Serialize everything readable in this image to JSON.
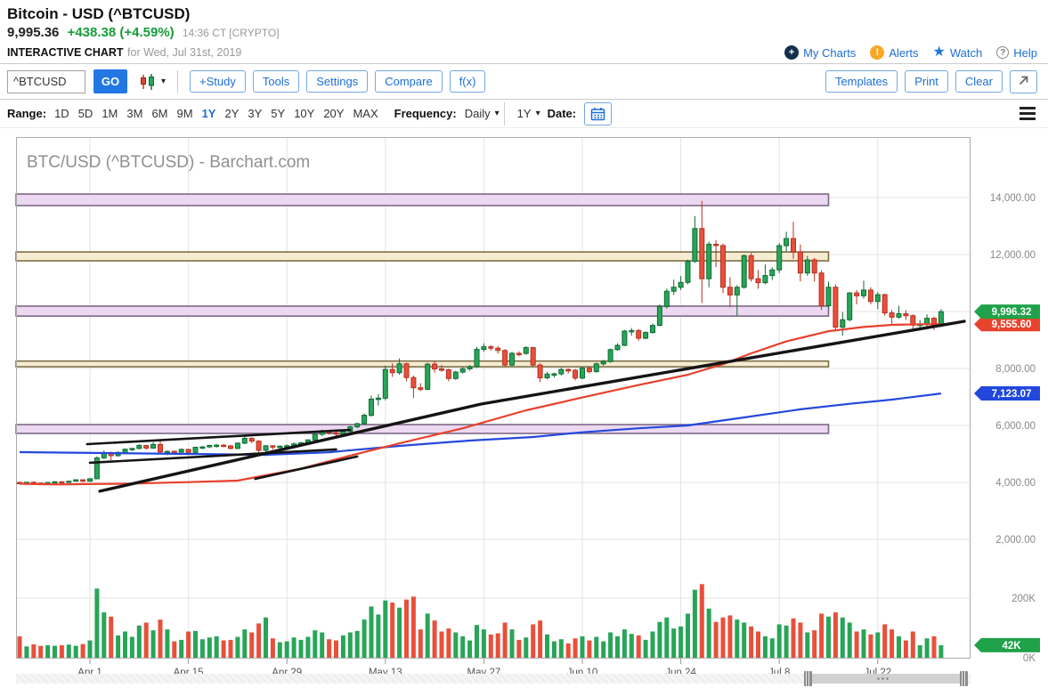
{
  "header": {
    "title": "Bitcoin - USD (^BTCUSD)",
    "price": "9,995.36",
    "change": "+438.38 (+4.59%)",
    "time": "14:36 CT [CRYPTO]",
    "page_label": "INTERACTIVE CHART",
    "page_sublabel": "for Wed, Jul 31st, 2019",
    "links": {
      "my_charts": "My Charts",
      "alerts": "Alerts",
      "watch": "Watch",
      "help": "Help"
    }
  },
  "icons": {
    "chevron_down": "▾",
    "star": "★",
    "plus": "+",
    "exclamation": "!",
    "question": "?"
  },
  "toolbar": {
    "symbol_value": "^BTCUSD",
    "go_label": "GO",
    "study_label": "+Study",
    "tools_label": "Tools",
    "settings_label": "Settings",
    "compare_label": "Compare",
    "fx_label": "f(x)",
    "templates_label": "Templates",
    "print_label": "Print",
    "clear_label": "Clear"
  },
  "rangebar": {
    "range_label": "Range:",
    "ranges": [
      "1D",
      "5D",
      "1M",
      "3M",
      "6M",
      "9M",
      "1Y",
      "2Y",
      "3Y",
      "5Y",
      "10Y",
      "20Y",
      "MAX"
    ],
    "selected_range": "1Y",
    "frequency_label": "Frequency:",
    "frequency_value": "Daily",
    "period_value": "1Y",
    "date_label": "Date:"
  },
  "chart_data": {
    "type": "candlestick",
    "symbol": "^BTCUSD",
    "watermark": "BTC/USD (^BTCUSD) - Barchart.com",
    "x_axis": {
      "labels": [
        {
          "label": "Apr 1",
          "day": 10
        },
        {
          "label": "Apr 15",
          "day": 24
        },
        {
          "label": "Apr 29",
          "day": 38
        },
        {
          "label": "May 13",
          "day": 52
        },
        {
          "label": "May 27",
          "day": 66
        },
        {
          "label": "Jun 10",
          "day": 80
        },
        {
          "label": "Jun 24",
          "day": 94
        },
        {
          "label": "Jul 8",
          "day": 108
        },
        {
          "label": "Jul 22",
          "day": 122
        }
      ]
    },
    "y_axis": {
      "ticks": [
        {
          "label": "14,000.00",
          "value": 14000
        },
        {
          "label": "12,000.00",
          "value": 12000
        },
        {
          "label": "10,000.00",
          "value": 10000
        },
        {
          "label": "8,000.00",
          "value": 8000
        },
        {
          "label": "6,000.00",
          "value": 6000
        },
        {
          "label": "4,000.00",
          "value": 4000
        },
        {
          "label": "2,000.00",
          "value": 2000
        }
      ]
    },
    "volume_axis": {
      "ticks": [
        {
          "label": "200K",
          "value": 200
        },
        {
          "label": "0K",
          "value": 0
        }
      ]
    },
    "price_tags": [
      {
        "label": "9,555.60",
        "value": 9555.6,
        "color": "#e8432c"
      },
      {
        "label": "9,996.32",
        "value": 9996.32,
        "color": "#1fa24a"
      },
      {
        "label": "7,123.07",
        "value": 7123.07,
        "color": "#2147dd"
      }
    ],
    "volume_tag": {
      "label": "42K",
      "value": 42,
      "color": "#1fa24a"
    },
    "bands": [
      {
        "color": "purple",
        "price_range": [
          13720,
          14125
        ],
        "day_range": [
          -0.5,
          115
        ]
      },
      {
        "color": "tan",
        "price_range": [
          11780,
          12090
        ],
        "day_range": [
          -0.5,
          115
        ]
      },
      {
        "color": "purple",
        "price_range": [
          9840,
          10190
        ],
        "day_range": [
          -0.5,
          115
        ]
      },
      {
        "color": "tan",
        "price_range": [
          8060,
          8260
        ],
        "day_range": [
          -0.5,
          115
        ]
      },
      {
        "color": "purple",
        "price_range": [
          5720,
          6030
        ],
        "day_range": [
          -0.5,
          115
        ]
      }
    ],
    "trendlines": [
      {
        "points": [
          [
            9.6,
            5344
          ],
          [
            47,
            5844
          ]
        ],
        "width": 2.6
      },
      {
        "points": [
          [
            10,
            4690
          ],
          [
            45,
            5160
          ]
        ],
        "width": 2.6
      },
      {
        "points": [
          [
            33.5,
            4125
          ],
          [
            48,
            4910
          ]
        ],
        "width": 2.6
      },
      {
        "points": [
          [
            11.4,
            3690
          ],
          [
            65.6,
            6750
          ],
          [
            134.3,
            9656
          ]
        ],
        "width": 3.4
      }
    ],
    "ma_fast": {
      "color": "#e8402d",
      "points": [
        [
          0,
          3952
        ],
        [
          3,
          3938
        ],
        [
          6,
          3928
        ],
        [
          9,
          3940
        ],
        [
          15,
          3952
        ],
        [
          24,
          4010
        ],
        [
          31,
          4062
        ],
        [
          40,
          4480
        ],
        [
          47,
          4940
        ],
        [
          55,
          5430
        ],
        [
          63,
          5900
        ],
        [
          72,
          6530
        ],
        [
          80,
          6980
        ],
        [
          88,
          7420
        ],
        [
          95,
          7780
        ],
        [
          100,
          8150
        ],
        [
          104,
          8530
        ],
        [
          109,
          8950
        ],
        [
          115,
          9310
        ],
        [
          120,
          9455
        ],
        [
          124,
          9530
        ],
        [
          128,
          9552
        ],
        [
          131,
          9556
        ]
      ]
    },
    "ma_slow": {
      "color": "#2448dd",
      "points": [
        [
          0,
          5062
        ],
        [
          12,
          5030
        ],
        [
          24,
          5000
        ],
        [
          35,
          4970
        ],
        [
          44,
          5060
        ],
        [
          54,
          5280
        ],
        [
          64,
          5470
        ],
        [
          73,
          5595
        ],
        [
          80,
          5760
        ],
        [
          88,
          5900
        ],
        [
          95,
          6000
        ],
        [
          103,
          6280
        ],
        [
          111,
          6565
        ],
        [
          118,
          6760
        ],
        [
          124,
          6905
        ],
        [
          131,
          7123
        ]
      ]
    },
    "candles": [
      [
        4000,
        4030,
        3950,
        3980,
        72
      ],
      [
        3980,
        4020,
        3955,
        4005,
        38
      ],
      [
        4005,
        4030,
        3950,
        3975,
        45
      ],
      [
        3975,
        4000,
        3945,
        3968,
        40
      ],
      [
        3968,
        4010,
        3952,
        3998,
        42
      ],
      [
        3998,
        4045,
        3980,
        4022,
        40
      ],
      [
        4022,
        4040,
        3992,
        4012,
        42
      ],
      [
        4012,
        4055,
        4000,
        4042,
        44
      ],
      [
        4042,
        4110,
        4028,
        4092,
        40
      ],
      [
        4092,
        4110,
        4018,
        4042,
        46
      ],
      [
        4042,
        4150,
        4028,
        4128,
        58
      ],
      [
        4128,
        4920,
        4110,
        4862,
        232
      ],
      [
        4862,
        5120,
        4820,
        5048,
        152
      ],
      [
        5048,
        5080,
        4780,
        4938,
        138
      ],
      [
        4938,
        5090,
        4900,
        5052,
        75
      ],
      [
        5052,
        5190,
        5030,
        5165,
        88
      ],
      [
        5165,
        5222,
        5098,
        5192,
        70
      ],
      [
        5192,
        5350,
        5160,
        5295,
        108
      ],
      [
        5295,
        5322,
        5148,
        5205,
        118
      ],
      [
        5205,
        5410,
        5178,
        5332,
        92
      ],
      [
        5332,
        5452,
        5012,
        5072,
        128
      ],
      [
        5072,
        5122,
        4952,
        5088,
        95
      ],
      [
        5095,
        5112,
        5022,
        5062,
        55
      ],
      [
        5062,
        5192,
        5040,
        5158,
        60
      ],
      [
        5158,
        5182,
        4992,
        5052,
        88
      ],
      [
        5052,
        5252,
        5030,
        5232,
        90
      ],
      [
        5232,
        5272,
        5170,
        5248,
        62
      ],
      [
        5248,
        5322,
        5200,
        5298,
        68
      ],
      [
        5298,
        5352,
        5222,
        5308,
        72
      ],
      [
        5308,
        5342,
        5232,
        5282,
        58
      ],
      [
        5282,
        5312,
        5162,
        5192,
        60
      ],
      [
        5192,
        5402,
        5172,
        5378,
        70
      ],
      [
        5378,
        5602,
        5342,
        5545,
        95
      ],
      [
        5545,
        5582,
        5382,
        5448,
        85
      ],
      [
        5448,
        5482,
        5052,
        5128,
        115
      ],
      [
        5128,
        5312,
        4922,
        5285,
        135
      ],
      [
        5285,
        5312,
        5152,
        5238,
        65
      ],
      [
        5238,
        5302,
        5182,
        5272,
        52
      ],
      [
        5272,
        5332,
        5212,
        5288,
        55
      ],
      [
        5288,
        5402,
        5242,
        5352,
        68
      ],
      [
        5352,
        5422,
        5302,
        5388,
        60
      ],
      [
        5388,
        5512,
        5352,
        5492,
        70
      ],
      [
        5492,
        5722,
        5462,
        5688,
        92
      ],
      [
        5688,
        5852,
        5622,
        5795,
        85
      ],
      [
        5795,
        5842,
        5682,
        5742,
        62
      ],
      [
        5742,
        5792,
        5642,
        5698,
        58
      ],
      [
        5698,
        5832,
        5662,
        5788,
        75
      ],
      [
        5788,
        5992,
        5752,
        5952,
        85
      ],
      [
        5952,
        6102,
        5902,
        6062,
        90
      ],
      [
        6062,
        6422,
        6022,
        6358,
        128
      ],
      [
        6358,
        7052,
        6302,
        6925,
        172
      ],
      [
        6925,
        7102,
        6702,
        6958,
        145
      ],
      [
        6958,
        8102,
        6880,
        7962,
        192
      ],
      [
        7962,
        8182,
        7702,
        7852,
        185
      ],
      [
        7852,
        8352,
        7782,
        8165,
        168
      ],
      [
        8165,
        8202,
        7552,
        7682,
        195
      ],
      [
        7682,
        7752,
        6962,
        7322,
        205
      ],
      [
        7322,
        7482,
        7202,
        7268,
        95
      ],
      [
        7268,
        8202,
        7242,
        8152,
        148
      ],
      [
        8152,
        8252,
        7852,
        7985,
        125
      ],
      [
        7985,
        8122,
        7882,
        7952,
        88
      ],
      [
        7952,
        7992,
        7552,
        7648,
        98
      ],
      [
        7648,
        7922,
        7602,
        7872,
        85
      ],
      [
        7872,
        8052,
        7822,
        7988,
        72
      ],
      [
        7988,
        8122,
        7922,
        8062,
        58
      ],
      [
        8062,
        8752,
        8022,
        8672,
        110
      ],
      [
        8672,
        8882,
        8582,
        8762,
        95
      ],
      [
        8762,
        8822,
        8622,
        8712,
        78
      ],
      [
        8712,
        8782,
        8522,
        8632,
        82
      ],
      [
        8632,
        8682,
        8052,
        8122,
        118
      ],
      [
        8122,
        8582,
        8082,
        8532,
        95
      ],
      [
        8532,
        8602,
        8422,
        8528,
        60
      ],
      [
        8528,
        8782,
        8482,
        8732,
        68
      ],
      [
        8732,
        8762,
        8052,
        8122,
        112
      ],
      [
        8122,
        8182,
        7522,
        7672,
        125
      ],
      [
        7672,
        7882,
        7622,
        7802,
        78
      ],
      [
        7802,
        7852,
        7682,
        7812,
        55
      ],
      [
        7812,
        8022,
        7752,
        7962,
        62
      ],
      [
        7962,
        8002,
        7822,
        7938,
        48
      ],
      [
        7938,
        7982,
        7582,
        7662,
        65
      ],
      [
        7662,
        8052,
        7622,
        8012,
        72
      ],
      [
        8012,
        8062,
        7822,
        7892,
        58
      ],
      [
        7892,
        8202,
        7852,
        8162,
        70
      ],
      [
        8162,
        8302,
        8102,
        8242,
        55
      ],
      [
        8242,
        8702,
        8202,
        8662,
        85
      ],
      [
        8662,
        8882,
        8622,
        8812,
        72
      ],
      [
        8812,
        9352,
        8782,
        9312,
        95
      ],
      [
        9312,
        9422,
        9152,
        9332,
        80
      ],
      [
        9332,
        9382,
        8972,
        9062,
        75
      ],
      [
        9062,
        9302,
        9022,
        9262,
        60
      ],
      [
        9262,
        9582,
        9222,
        9512,
        88
      ],
      [
        9512,
        10252,
        9482,
        10172,
        120
      ],
      [
        10172,
        10802,
        10102,
        10712,
        135
      ],
      [
        10712,
        11122,
        10582,
        10852,
        98
      ],
      [
        10852,
        11252,
        10752,
        11022,
        105
      ],
      [
        11022,
        11822,
        10952,
        11762,
        148
      ],
      [
        11762,
        13352,
        11702,
        12912,
        228
      ],
      [
        12912,
        13882,
        10302,
        11152,
        247
      ],
      [
        11152,
        12452,
        10852,
        12362,
        165
      ],
      [
        12362,
        12502,
        11552,
        12315,
        120
      ],
      [
        12315,
        12382,
        10652,
        10852,
        135
      ],
      [
        10852,
        11202,
        10152,
        10582,
        142
      ],
      [
        10582,
        10922,
        9852,
        10852,
        128
      ],
      [
        10852,
        12002,
        10802,
        11962,
        118
      ],
      [
        11962,
        12052,
        11052,
        11152,
        105
      ],
      [
        11152,
        11452,
        10802,
        11012,
        88
      ],
      [
        11012,
        11652,
        10952,
        11262,
        72
      ],
      [
        11262,
        11552,
        11102,
        11462,
        65
      ],
      [
        11462,
        12402,
        11352,
        12312,
        112
      ],
      [
        12312,
        12802,
        12102,
        12562,
        108
      ],
      [
        12562,
        13152,
        11852,
        12092,
        132
      ],
      [
        12092,
        12352,
        11052,
        11352,
        118
      ],
      [
        11352,
        11952,
        11252,
        11812,
        85
      ],
      [
        11812,
        11882,
        11052,
        11352,
        92
      ],
      [
        11352,
        11452,
        10052,
        10202,
        148
      ],
      [
        10202,
        11052,
        10102,
        10852,
        138
      ],
      [
        10852,
        10952,
        9352,
        9452,
        152
      ],
      [
        9452,
        9982,
        9152,
        9712,
        135
      ],
      [
        9712,
        10682,
        9652,
        10652,
        118
      ],
      [
        10652,
        10752,
        10252,
        10552,
        88
      ],
      [
        10552,
        11082,
        10452,
        10752,
        95
      ],
      [
        10752,
        10852,
        10252,
        10352,
        78
      ],
      [
        10352,
        10682,
        10082,
        10592,
        85
      ],
      [
        10592,
        10622,
        9852,
        9952,
        112
      ],
      [
        9952,
        10052,
        9552,
        9802,
        95
      ],
      [
        9802,
        10202,
        9752,
        9922,
        72
      ],
      [
        9922,
        10052,
        9702,
        9852,
        58
      ],
      [
        9852,
        9902,
        9352,
        9522,
        88
      ],
      [
        9522,
        9702,
        9402,
        9552,
        42
      ],
      [
        9552,
        9902,
        9452,
        9762,
        65
      ],
      [
        9762,
        9822,
        9352,
        9512,
        72
      ],
      [
        9512,
        10082,
        9452,
        9996,
        42
      ]
    ],
    "colors": {
      "up": "#28a558",
      "up_stroke": "#0d6b32",
      "down": "#e8503c",
      "down_stroke": "#b5301f",
      "band_purple_fill": "#ecd9f1",
      "band_purple_stroke": "#7d6886",
      "band_tan_fill": "#f6ecd2",
      "band_tan_stroke": "#7d6f45",
      "grid": "#e3e3e3",
      "axis_text": "#888",
      "trend": "#141414"
    }
  }
}
